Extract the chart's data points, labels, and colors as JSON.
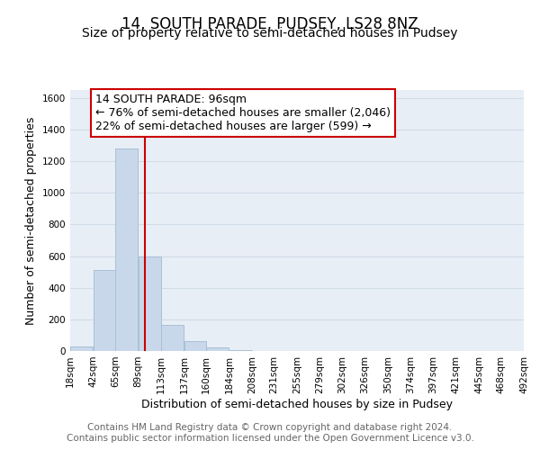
{
  "title": "14, SOUTH PARADE, PUDSEY, LS28 8NZ",
  "subtitle": "Size of property relative to semi-detached houses in Pudsey",
  "xlabel": "Distribution of semi-detached houses by size in Pudsey",
  "ylabel": "Number of semi-detached properties",
  "footer_line1": "Contains HM Land Registry data © Crown copyright and database right 2024.",
  "footer_line2": "Contains public sector information licensed under the Open Government Licence v3.0.",
  "bin_edges": [
    18,
    42,
    65,
    89,
    113,
    137,
    160,
    184,
    208,
    231,
    255,
    279,
    302,
    326,
    350,
    374,
    397,
    421,
    445,
    468,
    492
  ],
  "bin_counts": [
    30,
    510,
    1280,
    600,
    165,
    60,
    25,
    5,
    0,
    0,
    0,
    0,
    0,
    0,
    0,
    0,
    0,
    0,
    0,
    0
  ],
  "bar_color": "#c8d8ea",
  "bar_edge_color": "#a8c0d6",
  "red_line_x": 96,
  "red_line_color": "#cc0000",
  "ylim": [
    0,
    1650
  ],
  "yticks": [
    0,
    200,
    400,
    600,
    800,
    1000,
    1200,
    1400,
    1600
  ],
  "annotation_box_text": "14 SOUTH PARADE: 96sqm\n← 76% of semi-detached houses are smaller (2,046)\n22% of semi-detached houses are larger (599) →",
  "annotation_box_color": "#ffffff",
  "annotation_box_edge_color": "#cc0000",
  "grid_color": "#d0dce8",
  "background_color": "#ffffff",
  "plot_area_color": "#e8eef5",
  "title_fontsize": 12,
  "subtitle_fontsize": 10,
  "annotation_fontsize": 9,
  "axis_label_fontsize": 9,
  "tick_fontsize": 7.5,
  "footer_fontsize": 7.5
}
